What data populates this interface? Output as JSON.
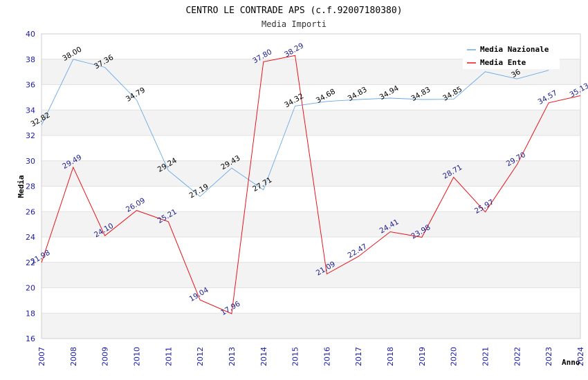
{
  "chart_data": {
    "type": "line",
    "title": "CENTRO LE CONTRADE APS (c.f.92007180380)",
    "subtitle": "Media Importi",
    "xlabel": "Anno",
    "ylabel": "Media",
    "ylim": [
      16,
      40
    ],
    "yticks": [
      16,
      18,
      20,
      22,
      24,
      26,
      28,
      30,
      32,
      34,
      36,
      38,
      40
    ],
    "x": [
      "2007",
      "2008",
      "2009",
      "2010",
      "2011",
      "2012",
      "2013",
      "2014",
      "2015",
      "2016",
      "2017",
      "2018",
      "2019",
      "2020",
      "2021",
      "2022",
      "2023",
      "2024"
    ],
    "legend_position": "top-right",
    "series": [
      {
        "name": "Media Nazionale",
        "color": "#6aa8e6",
        "values": [
          32.82,
          38.0,
          37.36,
          34.79,
          29.24,
          27.19,
          29.43,
          27.71,
          34.32,
          34.68,
          34.83,
          34.94,
          34.83,
          34.85,
          37.02,
          36.45,
          37.13,
          null
        ],
        "labels": [
          "32.82",
          "38.00",
          "37.36",
          "34.79",
          "29.24",
          "27.19",
          "29.43",
          "27.71",
          "34.32",
          "34.68",
          "34.83",
          "34.94",
          "34.83",
          "34.85",
          "",
          "36",
          "",
          ""
        ]
      },
      {
        "name": "Media Ente",
        "color": "#e8131b",
        "values": [
          21.98,
          29.49,
          24.1,
          26.09,
          25.21,
          19.04,
          17.96,
          37.8,
          38.29,
          21.09,
          22.47,
          24.41,
          23.98,
          28.71,
          25.97,
          29.7,
          34.57,
          35.13
        ],
        "labels": [
          "21.98",
          "29.49",
          "24.10",
          "26.09",
          "25.21",
          "19.04",
          "17.96",
          "37.80",
          "38.29",
          "21.09",
          "22.47",
          "24.41",
          "23.98",
          "28.71",
          "25.97",
          "29.70",
          "34.57",
          "35.13"
        ]
      }
    ]
  }
}
